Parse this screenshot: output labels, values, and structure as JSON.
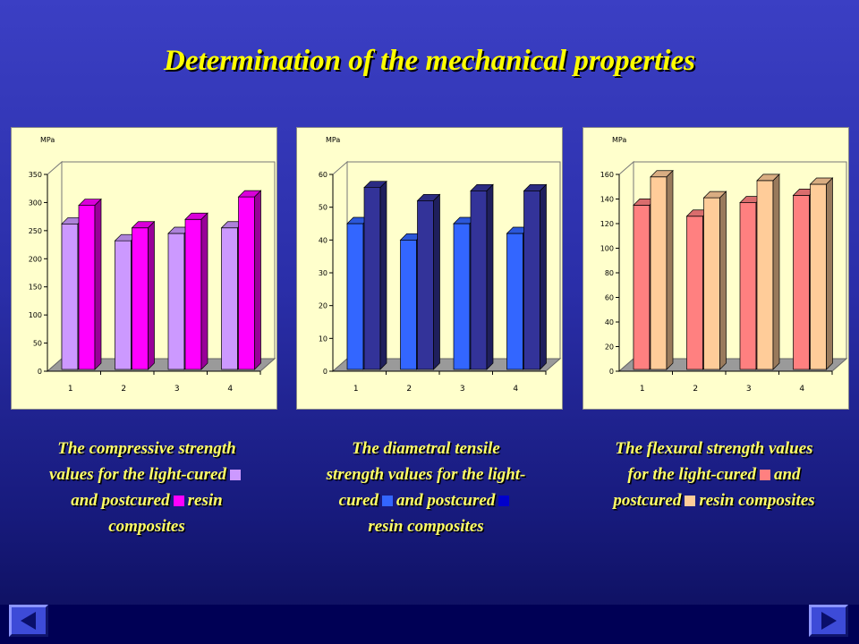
{
  "slide": {
    "title": "Determination of the mechanical properties"
  },
  "chart_data": [
    {
      "type": "bar",
      "title": "",
      "ylabel": "MPa",
      "xlabel": "",
      "categories": [
        "1",
        "2",
        "3",
        "4"
      ],
      "ylim": [
        0,
        350
      ],
      "yticks": [
        "0",
        "50",
        "100",
        "150",
        "200",
        "250",
        "300",
        "350"
      ],
      "series": [
        {
          "name": "light-cured",
          "color": "#cc99ff",
          "values": [
            262,
            232,
            245,
            255
          ]
        },
        {
          "name": "postcured",
          "color": "#ff00ff",
          "values": [
            295,
            255,
            270,
            310
          ]
        }
      ],
      "grid": false,
      "legend": "none"
    },
    {
      "type": "bar",
      "title": "",
      "ylabel": "MPa",
      "xlabel": "",
      "categories": [
        "1",
        "2",
        "3",
        "4"
      ],
      "ylim": [
        0,
        60
      ],
      "yticks": [
        "0",
        "10",
        "20",
        "30",
        "40",
        "50",
        "60"
      ],
      "series": [
        {
          "name": "light-cured",
          "color": "#3366ff",
          "values": [
            45,
            40,
            45,
            42
          ]
        },
        {
          "name": "postcured",
          "color": "#333399",
          "values": [
            56,
            52,
            55,
            55
          ]
        }
      ],
      "grid": false,
      "legend": "none"
    },
    {
      "type": "bar",
      "title": "",
      "ylabel": "MPa",
      "xlabel": "",
      "categories": [
        "1",
        "2",
        "3",
        "4"
      ],
      "ylim": [
        0,
        160
      ],
      "yticks": [
        "0",
        "20",
        "40",
        "60",
        "80",
        "100",
        "120",
        "140",
        "160"
      ],
      "series": [
        {
          "name": "light-cured",
          "color": "#ff8080",
          "values": [
            135,
            126,
            137,
            143
          ]
        },
        {
          "name": "postcured",
          "color": "#ffcc99",
          "values": [
            158,
            141,
            155,
            152
          ]
        }
      ],
      "grid": false,
      "legend": "none"
    }
  ],
  "captions": [
    {
      "line1": "The compressive strength",
      "line2": "values for the light-cured",
      "line3a": "and postcured",
      "line3b": "resin",
      "line4": "composites",
      "swatch1": "#cc99ff",
      "swatch2": "#ff00ff"
    },
    {
      "line1": "The diametral tensile",
      "line2": "strength values for the light-",
      "line3a": "cured",
      "line3b": "and postcured",
      "line4": "resin composites",
      "swatch1": "#3366ff",
      "swatch2": "#0000cc"
    },
    {
      "line1": "The flexural strength values",
      "line2a": "for the light-cured",
      "line2b": "and",
      "line3a": "postcured",
      "line3b": "resin composites",
      "swatch1": "#ff8080",
      "swatch2": "#ffcc99"
    }
  ],
  "nav": {
    "back_icon": "left-triangle-icon",
    "forward_icon": "right-triangle-icon"
  }
}
